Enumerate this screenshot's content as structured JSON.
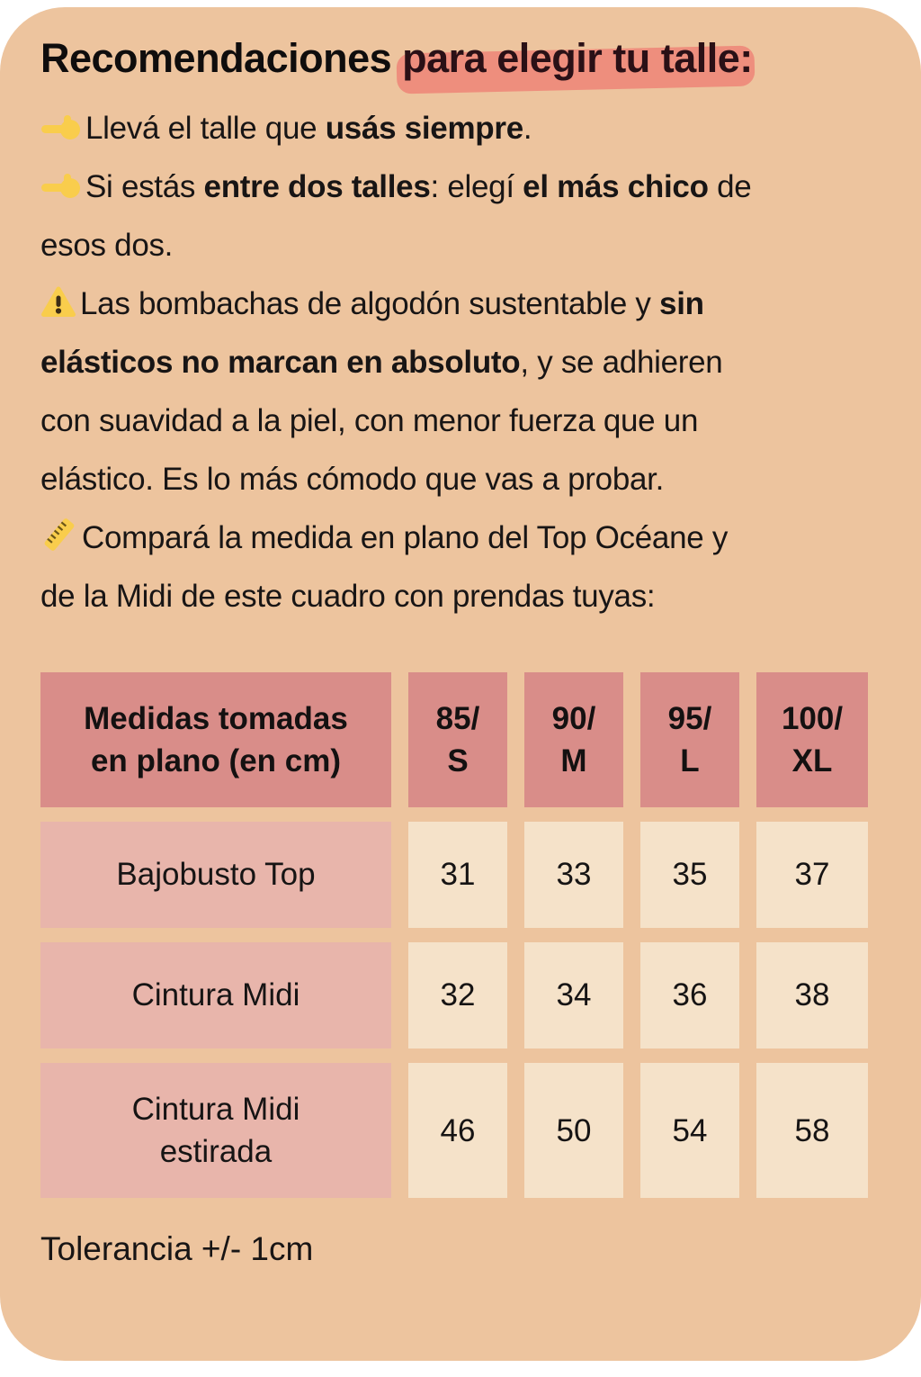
{
  "colors": {
    "card-bg": "#EDC49E",
    "highlight": "#EE8E7D",
    "icon-yellow": "#F9CD4C",
    "header-bg": "#D98D89",
    "label-bg": "#E8B5AB",
    "value-bg": "#F5E2C9",
    "text": "#161414",
    "warning-accent": "#3B2C15"
  },
  "title": {
    "plain": "Recomendaciones ",
    "highlighted": "para elegir tu talle:"
  },
  "bullets": [
    {
      "icon": "pointing-hand",
      "segments": [
        {
          "t": "Llevá el talle que "
        },
        {
          "t": "usás siempre",
          "b": true
        },
        {
          "t": "."
        }
      ]
    },
    {
      "icon": "pointing-hand",
      "segments": [
        {
          "t": "Si estás "
        },
        {
          "t": "entre dos talles",
          "b": true
        },
        {
          "t": ": elegí "
        },
        {
          "t": "el más chico",
          "b": true
        },
        {
          "t": " de"
        },
        {
          "br": true
        },
        {
          "t": "esos dos."
        }
      ]
    }
  ],
  "warning": {
    "icon": "warning-triangle",
    "segments": [
      {
        "t": "Las bombachas de algodón sustentable y "
      },
      {
        "t": " sin",
        "b": true
      },
      {
        "br": true
      },
      {
        "t": "elásticos no marcan en absoluto",
        "b": true
      },
      {
        "t": ", y se adhieren"
      },
      {
        "br": true
      },
      {
        "t": "con suavidad a la piel, con menor fuerza que un"
      },
      {
        "br": true
      },
      {
        "t": "elástico. Es lo más cómodo que vas a probar."
      }
    ]
  },
  "measure_note": {
    "icon": "ruler",
    "segments": [
      {
        "t": "Compará la medida en plano del Top Océane y"
      },
      {
        "br": true
      },
      {
        "t": "de la Midi de este cuadro con prendas tuyas:"
      }
    ]
  },
  "table": {
    "header_label_lines": [
      "Medidas tomadas",
      "en plano (en cm)"
    ],
    "size_columns": [
      {
        "lines": [
          "85/",
          "S"
        ]
      },
      {
        "lines": [
          "90/",
          "M"
        ]
      },
      {
        "lines": [
          "95/",
          "L"
        ]
      },
      {
        "lines": [
          "100/",
          "XL"
        ]
      }
    ],
    "rows": [
      {
        "label_lines": [
          "Bajobusto Top"
        ],
        "values": [
          "31",
          "33",
          "35",
          "37"
        ]
      },
      {
        "label_lines": [
          "Cintura Midi"
        ],
        "values": [
          "32",
          "34",
          "36",
          "38"
        ]
      },
      {
        "label_lines": [
          "Cintura Midi",
          "estirada"
        ],
        "values": [
          "46",
          "50",
          "54",
          "58"
        ]
      }
    ]
  },
  "tolerance_note": "Tolerancia +/- 1cm"
}
